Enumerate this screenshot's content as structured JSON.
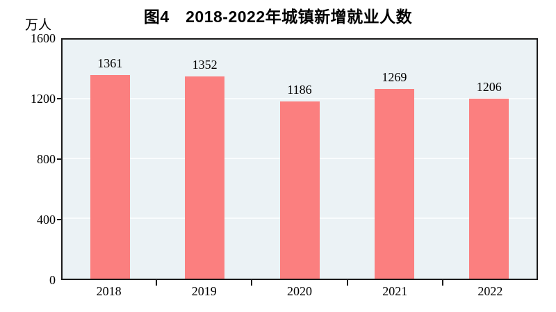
{
  "chart": {
    "title": "图4　2018-2022年城镇新增就业人数",
    "unit_label": "万人",
    "colors": {
      "bar": "#fb7f7f",
      "plot_background": "#ebf2f5",
      "gridline": "#f9fcfd",
      "axis": "#1a1a1a",
      "text": "#000000",
      "page_background": "#ffffff"
    }
  },
  "chart_data": {
    "type": "bar",
    "title": "图4　2018-2022年城镇新增就业人数",
    "categories": [
      "2018",
      "2019",
      "2020",
      "2021",
      "2022"
    ],
    "values": [
      1361,
      1352,
      1186,
      1269,
      1206
    ],
    "data_labels_shown": true,
    "xlabel": "",
    "ylabel": "万人",
    "ylim": [
      0,
      1600
    ],
    "yticks": [
      0,
      400,
      800,
      1200,
      1600
    ],
    "grid": true,
    "legend": false
  }
}
